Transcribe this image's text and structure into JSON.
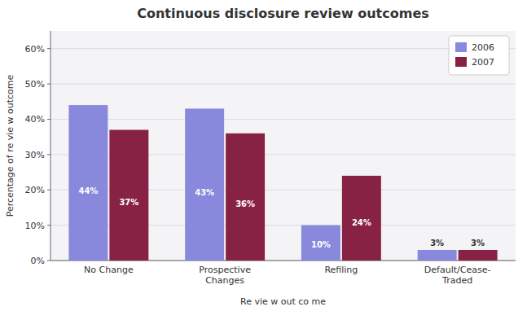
{
  "chart_data": {
    "type": "bar",
    "title": "Continuous disclosure review outcomes",
    "xlabel": "Re vie w out co me",
    "ylabel": "Percentage of re vie w outcome",
    "categories": [
      "No Change",
      "Prospective\nChanges",
      "Refiling",
      "Default/Cease-\nTraded"
    ],
    "series": [
      {
        "name": "2006",
        "color": "#8888DD",
        "values": [
          44,
          43,
          10,
          3
        ],
        "value_labels": [
          "44%",
          "43%",
          "10%",
          "3%"
        ]
      },
      {
        "name": "2007",
        "color": "#882244",
        "values": [
          37,
          36,
          24,
          3
        ],
        "value_labels": [
          "37%",
          "36%",
          "24%",
          "3%"
        ]
      }
    ],
    "ylim": [
      0,
      65
    ],
    "yticks": [
      {
        "value": 0,
        "label": "0%"
      },
      {
        "value": 10,
        "label": "10%"
      },
      {
        "value": 20,
        "label": "20%"
      },
      {
        "value": 30,
        "label": "30%"
      },
      {
        "value": 40,
        "label": "40%"
      },
      {
        "value": 50,
        "label": "50%"
      },
      {
        "value": 60,
        "label": "60%"
      }
    ],
    "grid": true,
    "legend": "upper right",
    "data_labels": true
  }
}
